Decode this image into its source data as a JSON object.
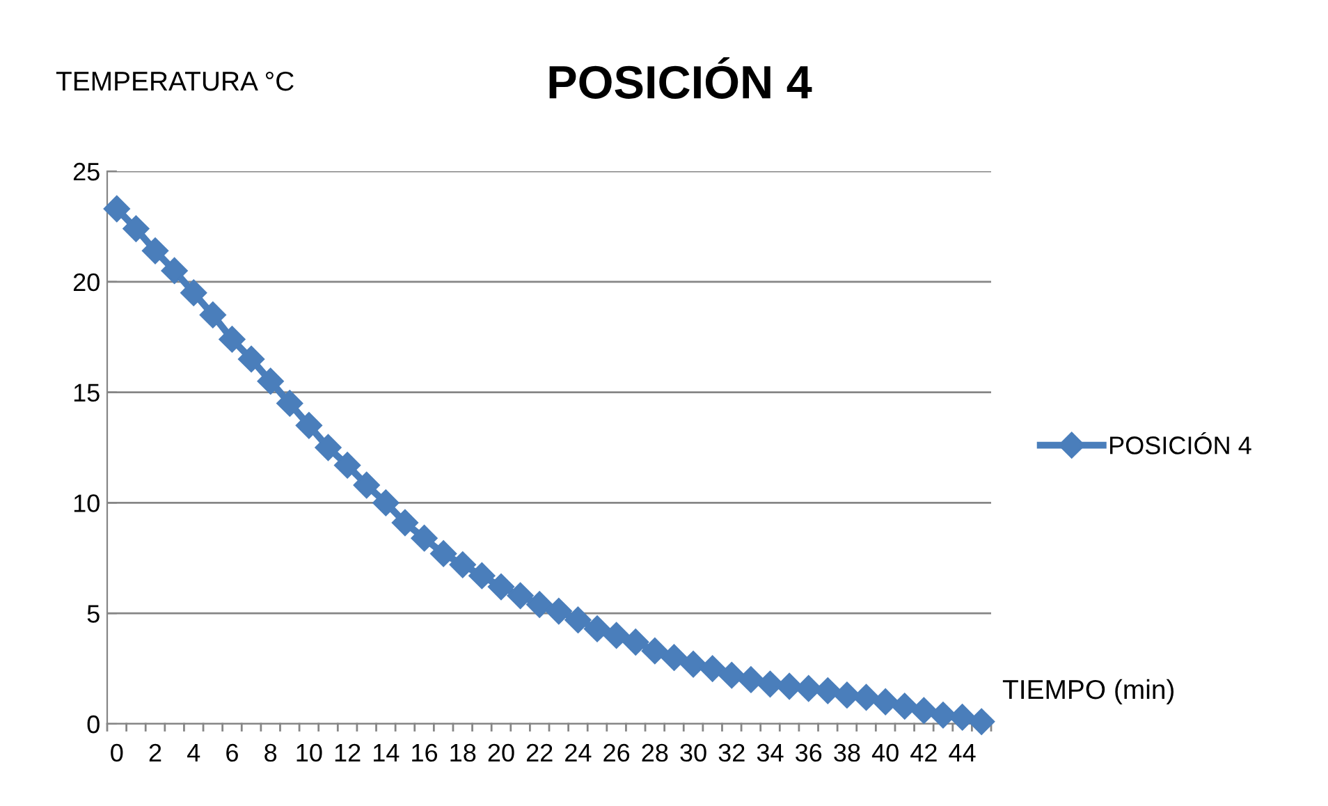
{
  "chart_data": {
    "type": "line",
    "title": "POSICIÓN 4",
    "ylabel": "TEMPERATURA °C",
    "xlabel": "TIEMPO (min)",
    "categories": [
      "0",
      null,
      "2",
      null,
      "4",
      null,
      "6",
      null,
      "8",
      null,
      "10",
      null,
      "12",
      null,
      "14",
      null,
      "16",
      null,
      "18",
      null,
      "20",
      null,
      "22",
      null,
      "24",
      null,
      "26",
      null,
      "28",
      null,
      "30",
      null,
      "32",
      null,
      "34",
      null,
      "36",
      null,
      "38",
      null,
      "40",
      null,
      "42",
      null,
      "44",
      null
    ],
    "series": [
      {
        "name": "POSICIÓN 4",
        "color": "#4a7ebb",
        "values": [
          23.3,
          22.4,
          21.4,
          20.5,
          19.5,
          18.5,
          17.4,
          16.5,
          15.5,
          14.5,
          13.5,
          12.5,
          11.7,
          10.8,
          10.0,
          9.1,
          8.4,
          7.7,
          7.2,
          6.7,
          6.2,
          5.8,
          5.4,
          5.1,
          4.7,
          4.3,
          4.0,
          3.7,
          3.3,
          3.0,
          2.7,
          2.5,
          2.2,
          2.0,
          1.8,
          1.7,
          1.6,
          1.5,
          1.3,
          1.2,
          1.0,
          0.8,
          0.6,
          0.4,
          0.3,
          0.1
        ]
      }
    ],
    "ylim": [
      0,
      25
    ],
    "yticks": [
      0,
      5,
      10,
      15,
      20,
      25
    ],
    "grid": "y",
    "legend": "right",
    "marker": "diamond",
    "line_style": "solid"
  }
}
